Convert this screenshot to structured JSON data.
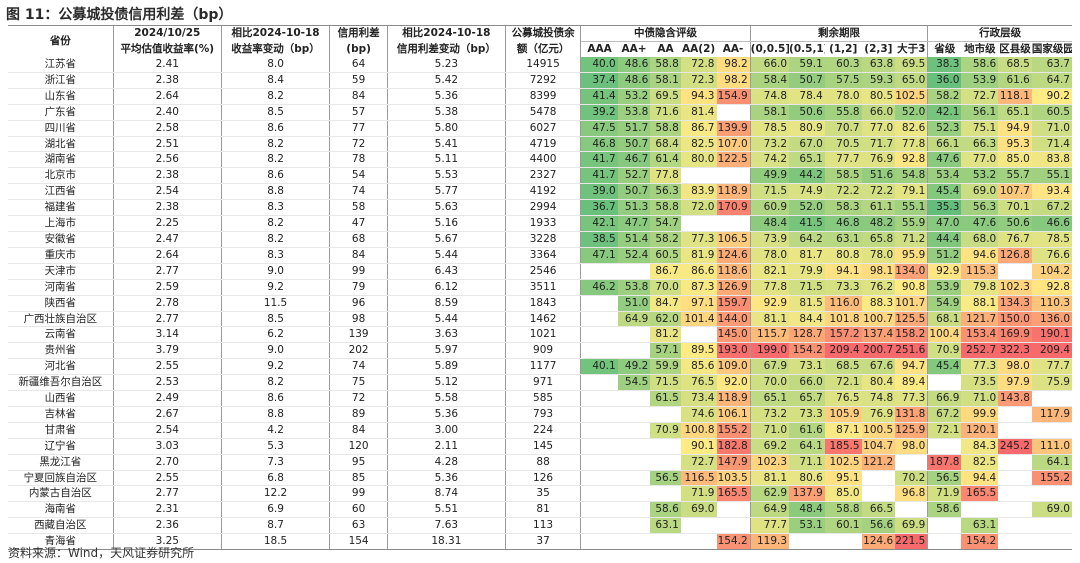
{
  "title": "图 11：公募城投债信用利差（bp）",
  "source": "资料来源：Wind，天风证券研究所",
  "header": {
    "province": "省份",
    "col1": [
      "2024/10/25",
      "平均估值收益率(%)"
    ],
    "col2": [
      "相比2024-10-18",
      "收益率变动（bp）"
    ],
    "col3": [
      "信用利差",
      "(bp)"
    ],
    "col4": [
      "相比2024-10-18",
      "信用利差变动（bp）"
    ],
    "col5": [
      "公募城投债余",
      "额（亿元）"
    ],
    "group1": "中债隐含评级",
    "group2": "剩余期限",
    "group3": "行政层级",
    "ratings": [
      "AAA",
      "AA+",
      "AA",
      "AA(2)",
      "AA-"
    ],
    "terms": [
      "(0,0.5]",
      "(0.5,1]",
      "(1,2]",
      "(2,3]",
      "大于3"
    ],
    "levels": [
      "省级",
      "地市级",
      "区县级",
      "国家级园区"
    ]
  },
  "rows": [
    [
      "江苏省",
      "2.41",
      "8.0",
      "64",
      "5.23",
      "14915",
      "40.0",
      "48.6",
      "58.8",
      "72.8",
      "98.2",
      "66.0",
      "59.1",
      "60.3",
      "63.8",
      "69.5",
      "38.3",
      "58.6",
      "68.5",
      "63.7"
    ],
    [
      "浙江省",
      "2.38",
      "8.4",
      "59",
      "5.42",
      "7292",
      "37.4",
      "48.6",
      "58.1",
      "72.3",
      "98.2",
      "58.4",
      "50.7",
      "57.5",
      "59.3",
      "65.0",
      "36.0",
      "53.9",
      "61.6",
      "64.7"
    ],
    [
      "山东省",
      "2.64",
      "8.2",
      "84",
      "5.36",
      "8399",
      "41.4",
      "53.2",
      "69.5",
      "94.3",
      "154.9",
      "74.8",
      "78.4",
      "78.0",
      "80.5",
      "102.5",
      "58.2",
      "72.7",
      "118.1",
      "90.2"
    ],
    [
      "广东省",
      "2.40",
      "8.5",
      "57",
      "5.38",
      "5478",
      "39.2",
      "53.8",
      "71.6",
      "81.4",
      "",
      "58.1",
      "50.6",
      "55.8",
      "66.0",
      "52.0",
      "42.1",
      "56.1",
      "65.1",
      "60.5"
    ],
    [
      "四川省",
      "2.58",
      "8.6",
      "77",
      "5.80",
      "6027",
      "47.5",
      "51.7",
      "58.8",
      "86.7",
      "139.9",
      "78.5",
      "80.9",
      "70.7",
      "77.0",
      "82.6",
      "52.3",
      "75.1",
      "94.9",
      "71.0"
    ],
    [
      "湖北省",
      "2.51",
      "8.2",
      "72",
      "5.41",
      "4719",
      "46.8",
      "50.7",
      "68.4",
      "82.5",
      "107.0",
      "73.2",
      "67.0",
      "70.5",
      "71.7",
      "77.8",
      "66.1",
      "66.3",
      "95.3",
      "71.4"
    ],
    [
      "湖南省",
      "2.56",
      "8.2",
      "78",
      "5.11",
      "4400",
      "41.7",
      "46.7",
      "61.4",
      "80.0",
      "122.5",
      "74.2",
      "65.1",
      "77.7",
      "76.9",
      "92.8",
      "47.6",
      "77.0",
      "85.0",
      "83.8"
    ],
    [
      "北京市",
      "2.38",
      "8.6",
      "54",
      "5.53",
      "2327",
      "41.7",
      "52.7",
      "77.8",
      "",
      "",
      "49.9",
      "44.2",
      "58.5",
      "51.6",
      "54.8",
      "53.4",
      "53.2",
      "55.7",
      "55.1"
    ],
    [
      "江西省",
      "2.54",
      "8.8",
      "74",
      "5.77",
      "4192",
      "39.0",
      "50.7",
      "56.3",
      "83.9",
      "118.9",
      "71.5",
      "74.9",
      "72.2",
      "72.2",
      "79.1",
      "45.4",
      "69.0",
      "107.7",
      "93.4"
    ],
    [
      "福建省",
      "2.38",
      "8.3",
      "58",
      "5.63",
      "2994",
      "36.7",
      "51.3",
      "58.8",
      "72.0",
      "170.9",
      "60.9",
      "52.0",
      "58.3",
      "61.1",
      "55.1",
      "35.3",
      "56.3",
      "70.1",
      "67.2"
    ],
    [
      "上海市",
      "2.25",
      "8.2",
      "47",
      "5.16",
      "1933",
      "42.1",
      "47.7",
      "54.7",
      "",
      "",
      "48.4",
      "41.5",
      "46.8",
      "48.2",
      "55.9",
      "47.0",
      "47.6",
      "50.6",
      "46.6"
    ],
    [
      "安徽省",
      "2.47",
      "8.2",
      "68",
      "5.67",
      "3228",
      "38.5",
      "51.4",
      "58.2",
      "77.3",
      "106.5",
      "73.9",
      "64.2",
      "63.1",
      "65.8",
      "71.2",
      "44.4",
      "68.0",
      "76.7",
      "78.5"
    ],
    [
      "重庆市",
      "2.64",
      "8.3",
      "84",
      "5.44",
      "3364",
      "47.1",
      "52.4",
      "60.5",
      "81.9",
      "124.6",
      "78.0",
      "81.7",
      "80.8",
      "78.0",
      "95.9",
      "51.2",
      "94.6",
      "126.8",
      "76.6"
    ],
    [
      "天津市",
      "2.77",
      "9.0",
      "99",
      "6.43",
      "2546",
      "",
      "",
      "86.7",
      "86.6",
      "118.6",
      "82.1",
      "79.9",
      "94.1",
      "98.1",
      "134.0",
      "92.9",
      "115.3",
      "",
      "104.2"
    ],
    [
      "河南省",
      "2.59",
      "9.2",
      "79",
      "6.12",
      "3511",
      "46.2",
      "53.8",
      "70.0",
      "87.3",
      "126.9",
      "77.8",
      "71.5",
      "73.3",
      "76.2",
      "90.8",
      "53.9",
      "79.8",
      "102.3",
      "92.8"
    ],
    [
      "陕西省",
      "2.78",
      "11.5",
      "96",
      "8.59",
      "1843",
      "",
      "51.0",
      "84.7",
      "97.1",
      "159.7",
      "92.9",
      "81.5",
      "116.0",
      "88.3",
      "101.7",
      "54.9",
      "88.1",
      "134.3",
      "110.3"
    ],
    [
      "广西壮族自治区",
      "2.77",
      "8.5",
      "98",
      "5.44",
      "1462",
      "",
      "64.9",
      "62.0",
      "101.4",
      "144.0",
      "81.1",
      "84.4",
      "101.8",
      "100.7",
      "125.5",
      "68.1",
      "121.7",
      "150.0",
      "136.0"
    ],
    [
      "云南省",
      "3.14",
      "6.2",
      "139",
      "3.63",
      "1021",
      "",
      "",
      "81.2",
      "",
      "145.0",
      "115.7",
      "128.7",
      "157.2",
      "137.4",
      "158.2",
      "100.4",
      "153.4",
      "169.9",
      "190.1"
    ],
    [
      "贵州省",
      "3.79",
      "9.0",
      "202",
      "5.97",
      "909",
      "",
      "",
      "57.1",
      "89.5",
      "193.0",
      "199.0",
      "154.2",
      "209.4",
      "200.7",
      "251.6",
      "70.9",
      "252.7",
      "322.3",
      "209.4"
    ],
    [
      "河北省",
      "2.55",
      "9.2",
      "74",
      "5.89",
      "1177",
      "40.1",
      "49.2",
      "59.9",
      "85.6",
      "109.0",
      "67.9",
      "73.1",
      "68.5",
      "67.6",
      "94.7",
      "45.4",
      "77.3",
      "98.0",
      "77.7"
    ],
    [
      "新疆维吾尔自治区",
      "2.53",
      "8.2",
      "75",
      "5.12",
      "971",
      "",
      "54.5",
      "71.5",
      "76.5",
      "92.0",
      "70.0",
      "66.0",
      "72.1",
      "80.4",
      "89.4",
      "",
      "73.5",
      "97.9",
      "75.9"
    ],
    [
      "山西省",
      "2.49",
      "8.6",
      "72",
      "5.58",
      "585",
      "",
      "",
      "61.5",
      "73.4",
      "118.9",
      "65.1",
      "65.7",
      "76.5",
      "74.8",
      "77.3",
      "66.9",
      "71.0",
      "143.8",
      ""
    ],
    [
      "吉林省",
      "2.67",
      "8.8",
      "89",
      "5.36",
      "793",
      "",
      "",
      "",
      "74.6",
      "106.1",
      "73.2",
      "73.3",
      "105.9",
      "76.9",
      "131.8",
      "67.2",
      "99.9",
      "",
      "117.9"
    ],
    [
      "甘肃省",
      "2.54",
      "4.2",
      "84",
      "3.00",
      "224",
      "",
      "",
      "70.9",
      "100.8",
      "155.2",
      "71.0",
      "61.6",
      "87.1",
      "100.5",
      "125.9",
      "72.1",
      "120.1",
      "",
      ""
    ],
    [
      "辽宁省",
      "3.03",
      "5.3",
      "120",
      "2.11",
      "145",
      "",
      "",
      "",
      "90.1",
      "182.8",
      "69.2",
      "64.1",
      "185.5",
      "104.7",
      "98.0",
      "",
      "84.3",
      "245.2",
      "111.0"
    ],
    [
      "黑龙江省",
      "2.70",
      "7.3",
      "95",
      "4.28",
      "88",
      "",
      "",
      "",
      "72.7",
      "147.9",
      "102.3",
      "71.1",
      "102.5",
      "121.2",
      "",
      "187.8",
      "82.5",
      "",
      "64.1"
    ],
    [
      "宁夏回族自治区",
      "2.55",
      "6.8",
      "85",
      "5.36",
      "126",
      "",
      "",
      "56.5",
      "116.5",
      "103.5",
      "81.1",
      "80.6",
      "95.1",
      "",
      "70.2",
      "56.5",
      "94.4",
      "",
      "155.2"
    ],
    [
      "内蒙古自治区",
      "2.77",
      "12.2",
      "99",
      "8.74",
      "35",
      "",
      "",
      "",
      "71.9",
      "165.5",
      "62.9",
      "137.9",
      "85.0",
      "",
      "96.8",
      "71.9",
      "165.5",
      "",
      ""
    ],
    [
      "海南省",
      "2.31",
      "6.9",
      "60",
      "5.51",
      "81",
      "",
      "",
      "58.6",
      "69.0",
      "",
      "64.9",
      "48.4",
      "58.8",
      "66.5",
      "",
      "58.6",
      "",
      "",
      "69.0"
    ],
    [
      "西藏自治区",
      "2.36",
      "8.7",
      "63",
      "7.63",
      "113",
      "",
      "",
      "63.1",
      "",
      "",
      "77.7",
      "53.1",
      "60.1",
      "56.6",
      "69.9",
      "",
      "63.1",
      "",
      ""
    ],
    [
      "青海省",
      "3.25",
      "18.5",
      "154",
      "18.31",
      "37",
      "",
      "",
      "",
      "",
      "154.2",
      "119.3",
      "",
      "",
      "124.6",
      "221.5",
      "",
      "154.2",
      "",
      ""
    ]
  ]
}
